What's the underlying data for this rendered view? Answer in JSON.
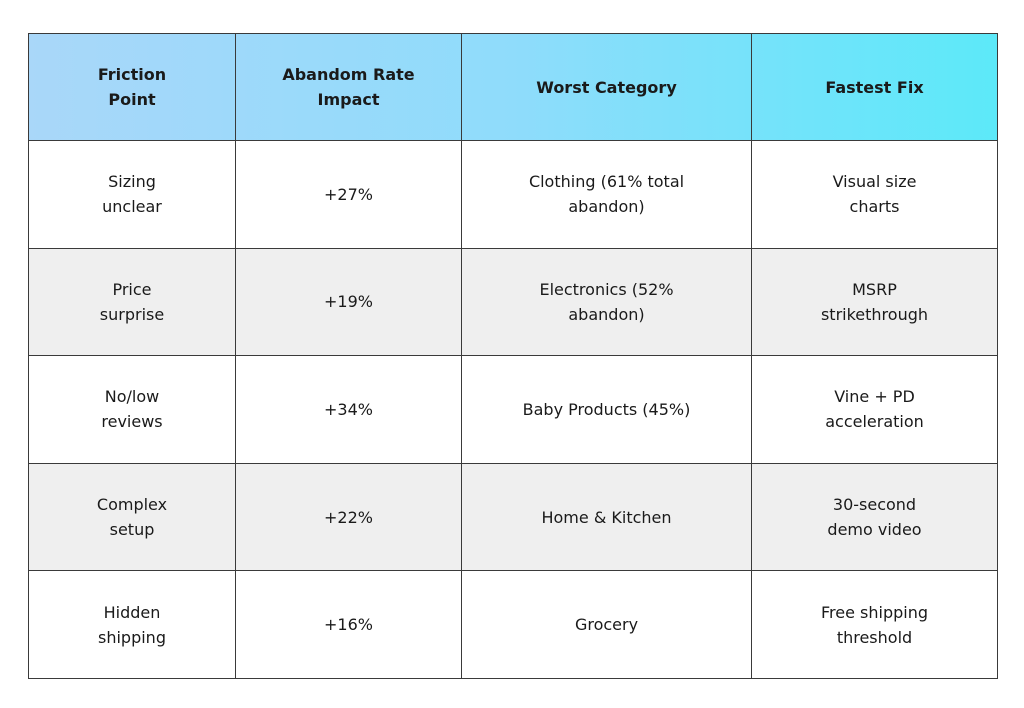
{
  "table": {
    "header": [
      "Friction Point",
      "Abandom Rate Impact",
      "Worst Category",
      "Fastest Fix"
    ],
    "rows": [
      [
        "Sizing unclear",
        "+27%",
        "Clothing (61% total abandon)",
        "Visual size charts"
      ],
      [
        "Price surprise",
        "+19%",
        "Electronics (52% abandon)",
        "MSRP strikethrough"
      ],
      [
        "No/low reviews",
        "+34%",
        "Baby Products (45%)",
        "Vine + PD acceleration"
      ],
      [
        "Complex setup",
        "+22%",
        "Home & Kitchen",
        "30-second demo video"
      ],
      [
        "Hidden shipping",
        "+16%",
        "Grocery",
        "Free shipping threshold"
      ]
    ]
  }
}
